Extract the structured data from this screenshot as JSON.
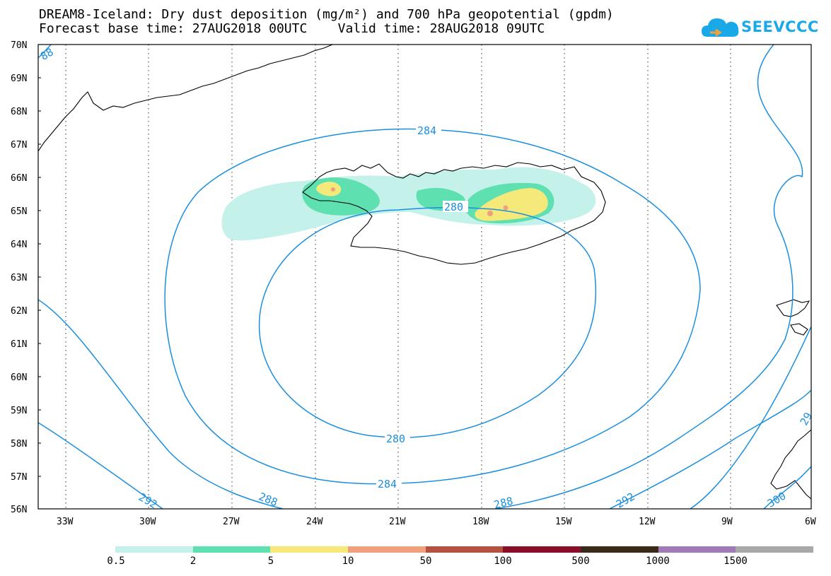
{
  "header": {
    "title_line1": "DREAM8-Iceland: Dry dust deposition (mg/m²) and 700 hPa geopotential (gpdm)",
    "title_line2": "Forecast base time: 27AUG2018 00UTC    Valid time: 28AUG2018 09UTC"
  },
  "logo": {
    "text": "SEEVCCC",
    "icon": "cloud-icon",
    "color": "#1aa9e8"
  },
  "map": {
    "region": "Iceland",
    "lat_labels": [
      "70N",
      "69N",
      "68N",
      "67N",
      "66N",
      "65N",
      "64N",
      "63N",
      "62N",
      "61N",
      "60N",
      "59N",
      "58N",
      "57N",
      "56N"
    ],
    "lon_labels": [
      "33W",
      "30W",
      "27W",
      "24W",
      "21W",
      "18W",
      "15W",
      "12W",
      "9W",
      "6W"
    ],
    "lat_range": [
      56,
      70
    ],
    "lon_range": [
      -34.2,
      -6
    ],
    "contour_color": "#1a8fe0",
    "contour_labels": [
      "284",
      "280",
      "280",
      "284",
      "288",
      "288",
      "292",
      "292",
      "300",
      "88",
      "29"
    ]
  },
  "legend": {
    "colors": [
      "#c4f1e9",
      "#5fe0b1",
      "#f5e97a",
      "#f0a07a",
      "#b5513f",
      "#8a0d2a",
      "#3a2a1a",
      "#a07ab4",
      "#a8a8a8"
    ],
    "labels": [
      "0.5",
      "2",
      "5",
      "10",
      "50",
      "100",
      "500",
      "1000",
      "1500"
    ]
  }
}
